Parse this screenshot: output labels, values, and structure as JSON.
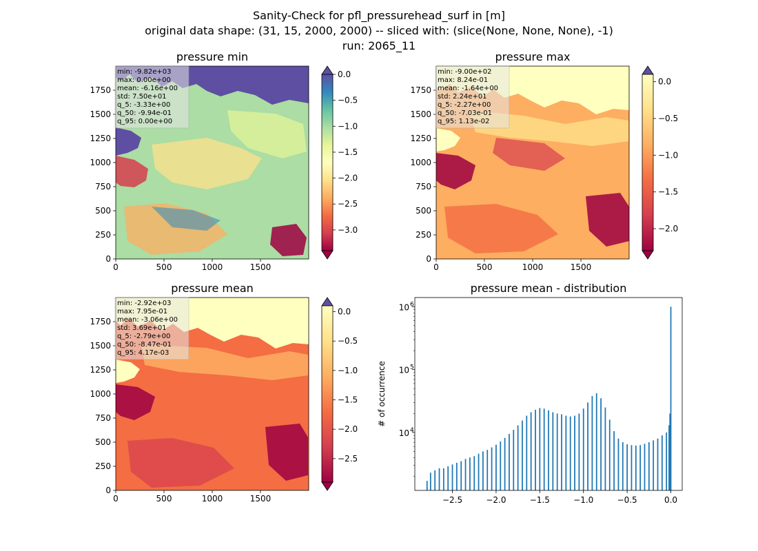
{
  "figure": {
    "title_lines": [
      "Sanity-Check for pfl_pressurehead_surf in [m]",
      "original data shape: (31, 15, 2000, 2000) -- sliced with: (slice(None, None, None), -1)",
      "run: 2065_11"
    ]
  },
  "chart_data": [
    {
      "type": "heatmap",
      "title": "pressure min",
      "colormap": "Spectral",
      "xlim": [
        0,
        2000
      ],
      "ylim": [
        0,
        2000
      ],
      "xticks": [
        0,
        500,
        1000,
        1500
      ],
      "yticks": [
        0,
        250,
        500,
        750,
        1000,
        1250,
        1500,
        1750
      ],
      "colorbar": {
        "range": [
          -3.4,
          0.0
        ],
        "ticks": [
          0.0,
          -0.5,
          -1.0,
          -1.5,
          -2.0,
          -2.5,
          -3.0
        ],
        "tick_labels": [
          "0.0",
          "−0.5",
          "−1.0",
          "−1.5",
          "−2.0",
          "−2.5",
          "−3.0"
        ],
        "extend_top_color": "#5e4fa2",
        "extend_bottom_color": "#9e0142"
      },
      "stats": [
        "min: -9.82e+03",
        "max: 0.00e+00",
        "mean: -6.16e+00",
        "std: 7.50e+01",
        "q_5: -3.33e+00",
        "q_50: -9.94e-01",
        "q_95: 0.00e+00"
      ]
    },
    {
      "type": "heatmap",
      "title": "pressure max",
      "colormap": "Spectral (lower half)",
      "xlim": [
        0,
        2000
      ],
      "ylim": [
        0,
        2000
      ],
      "xticks": [
        0,
        500,
        1000,
        1500
      ],
      "yticks": [
        0,
        250,
        500,
        750,
        1000,
        1250,
        1500,
        1750
      ],
      "colorbar": {
        "range": [
          -2.3,
          0.1
        ],
        "ticks": [
          0.0,
          -0.5,
          -1.0,
          -1.5,
          -2.0
        ],
        "tick_labels": [
          "0.0",
          "−0.5",
          "−1.0",
          "−1.5",
          "−2.0"
        ],
        "extend_top_color": "#5e4fa2",
        "extend_bottom_color": "#9e0142"
      },
      "stats": [
        "min: -9.00e+02",
        "max: 8.24e-01",
        "mean: -1.64e+00",
        "std: 2.24e+01",
        "q_5: -2.27e+00",
        "q_50: -7.03e-01",
        "q_95: 1.13e-02"
      ]
    },
    {
      "type": "heatmap",
      "title": "pressure mean",
      "colormap": "Spectral (lower half)",
      "xlim": [
        0,
        2000
      ],
      "ylim": [
        0,
        2000
      ],
      "xticks": [
        0,
        500,
        1000,
        1500
      ],
      "yticks": [
        0,
        250,
        500,
        750,
        1000,
        1250,
        1500,
        1750
      ],
      "colorbar": {
        "range": [
          -2.9,
          0.1
        ],
        "ticks": [
          0.0,
          -0.5,
          -1.0,
          -1.5,
          -2.0,
          -2.5
        ],
        "tick_labels": [
          "0.0",
          "−0.5",
          "−1.0",
          "−1.5",
          "−2.0",
          "−2.5"
        ],
        "extend_top_color": "#5e4fa2",
        "extend_bottom_color": "#9e0142"
      },
      "stats": [
        "min: -2.92e+03",
        "max: 7.95e-01",
        "mean: -3.06e+00",
        "std: 3.69e+01",
        "q_5: -2.79e+00",
        "q_50: -8.47e-01",
        "q_95: 4.17e-03"
      ]
    },
    {
      "type": "bar",
      "subtype": "histogram",
      "title": "pressure mean - distribution",
      "ylabel": "# of occurrence",
      "yscale": "log",
      "color": "#1f77b4",
      "xlim": [
        -2.93,
        0.13
      ],
      "ylim": [
        1200,
        1400000
      ],
      "xticks": [
        -2.5,
        -2.0,
        -1.5,
        -1.0,
        -0.5,
        0.0
      ],
      "xtick_labels": [
        "−2.5",
        "−2.0",
        "−1.5",
        "−1.0",
        "−0.5",
        "0.0"
      ],
      "yticks": [
        10000,
        100000,
        1000000
      ],
      "bin_width": 0.014,
      "bins": [
        [
          -2.79,
          1700
        ],
        [
          -2.75,
          2300
        ],
        [
          -2.7,
          2500
        ],
        [
          -2.65,
          2700
        ],
        [
          -2.6,
          2700
        ],
        [
          -2.55,
          2900
        ],
        [
          -2.5,
          3100
        ],
        [
          -2.45,
          3300
        ],
        [
          -2.4,
          3500
        ],
        [
          -2.35,
          3800
        ],
        [
          -2.3,
          4000
        ],
        [
          -2.25,
          4200
        ],
        [
          -2.2,
          4600
        ],
        [
          -2.15,
          5000
        ],
        [
          -2.1,
          5300
        ],
        [
          -2.05,
          5800
        ],
        [
          -2.0,
          6400
        ],
        [
          -1.95,
          7200
        ],
        [
          -1.9,
          8200
        ],
        [
          -1.85,
          9500
        ],
        [
          -1.8,
          11000
        ],
        [
          -1.75,
          13000
        ],
        [
          -1.7,
          15500
        ],
        [
          -1.65,
          18500
        ],
        [
          -1.6,
          21000
        ],
        [
          -1.55,
          23000
        ],
        [
          -1.5,
          24500
        ],
        [
          -1.45,
          24000
        ],
        [
          -1.4,
          22500
        ],
        [
          -1.35,
          21000
        ],
        [
          -1.3,
          20000
        ],
        [
          -1.25,
          19500
        ],
        [
          -1.2,
          18500
        ],
        [
          -1.15,
          18000
        ],
        [
          -1.1,
          18500
        ],
        [
          -1.05,
          20000
        ],
        [
          -1.0,
          24000
        ],
        [
          -0.95,
          30000
        ],
        [
          -0.9,
          38000
        ],
        [
          -0.85,
          42000
        ],
        [
          -0.8,
          35000
        ],
        [
          -0.75,
          25000
        ],
        [
          -0.7,
          16000
        ],
        [
          -0.65,
          10500
        ],
        [
          -0.6,
          8000
        ],
        [
          -0.55,
          7000
        ],
        [
          -0.5,
          6500
        ],
        [
          -0.45,
          6300
        ],
        [
          -0.4,
          6200
        ],
        [
          -0.35,
          6300
        ],
        [
          -0.3,
          6600
        ],
        [
          -0.25,
          7000
        ],
        [
          -0.2,
          7500
        ],
        [
          -0.15,
          8000
        ],
        [
          -0.1,
          9000
        ],
        [
          -0.05,
          10000
        ],
        [
          -0.02,
          13000
        ],
        [
          -0.01,
          20000
        ],
        [
          0.0,
          1000000
        ]
      ]
    }
  ]
}
